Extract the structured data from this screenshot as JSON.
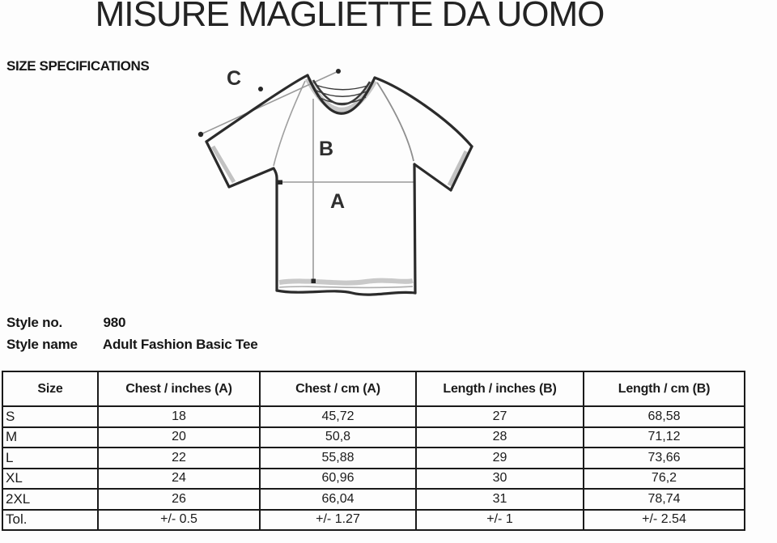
{
  "title": "MISURE MAGLIETTE DA UOMO",
  "subtitle": "SIZE SPECIFICATIONS",
  "diagram": {
    "label_a": "A",
    "label_b": "B",
    "label_c": "C",
    "line_color": "#9a9a9a",
    "outline_color": "#2b2b2b"
  },
  "style_info": {
    "no_label": "Style no.",
    "no_value": "980",
    "name_label": "Style name",
    "name_value": "Adult Fashion Basic Tee"
  },
  "size_table": {
    "headers": [
      "Size",
      "Chest / inches (A)",
      "Chest / cm (A)",
      "Length / inches (B)",
      "Length / cm (B)"
    ],
    "rows": [
      [
        "S",
        "18",
        "45,72",
        "27",
        "68,58"
      ],
      [
        "M",
        "20",
        "50,8",
        "28",
        "71,12"
      ],
      [
        "L",
        "22",
        "55,88",
        "29",
        "73,66"
      ],
      [
        "XL",
        "24",
        "60,96",
        "30",
        "76,2"
      ],
      [
        "2XL",
        "26",
        "66,04",
        "31",
        "78,74"
      ],
      [
        "Tol.",
        "+/- 0.5",
        "+/- 1.27",
        "+/- 1",
        "+/- 2.54"
      ]
    ]
  }
}
